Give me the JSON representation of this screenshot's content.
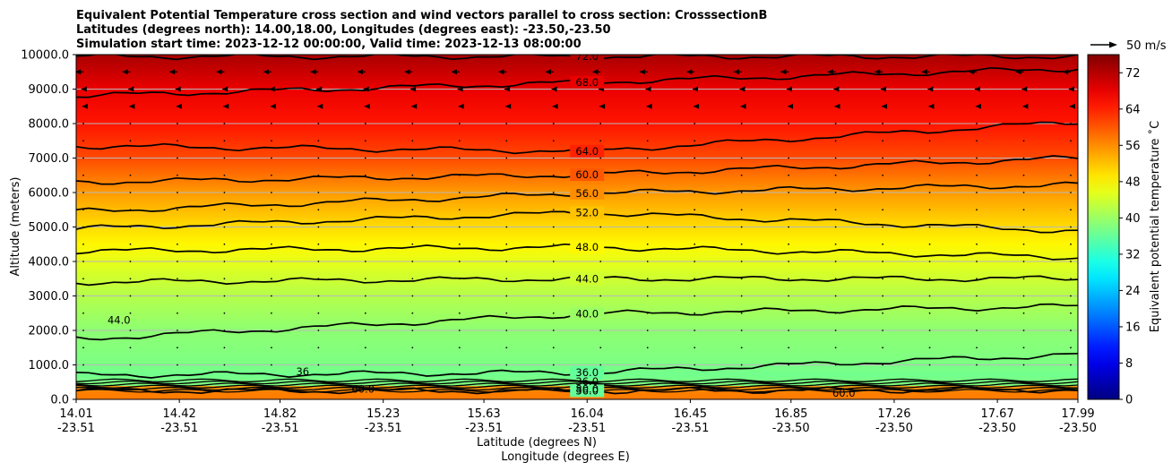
{
  "chart_data": {
    "type": "heatmap",
    "title_lines": [
      "Equivalent Potential Temperature cross section and wind vectors parallel to cross section: CrosssectionB",
      "Latitudes (degrees north): 14.00,18.00, Longitudes (degrees east): -23.50,-23.50",
      "Simulation start time: 2023-12-12 00:00:00, Valid time: 2023-12-13 08:00:00"
    ],
    "xlabel": "Latitude (degrees N)",
    "xlabel2": "Longitude (degrees E)",
    "ylabel": "Altitude (meters)",
    "ylim": [
      0,
      10000
    ],
    "xlim": [
      14.01,
      17.99
    ],
    "y_ticks": [
      "0.0",
      "1000.0",
      "2000.0",
      "3000.0",
      "4000.0",
      "5000.0",
      "6000.0",
      "7000.0",
      "8000.0",
      "9000.0",
      "10000.0"
    ],
    "x_ticks": [
      {
        "lat": "14.01",
        "lon": "-23.51"
      },
      {
        "lat": "14.42",
        "lon": "-23.51"
      },
      {
        "lat": "14.82",
        "lon": "-23.51"
      },
      {
        "lat": "15.23",
        "lon": "-23.51"
      },
      {
        "lat": "15.63",
        "lon": "-23.51"
      },
      {
        "lat": "16.04",
        "lon": "-23.51"
      },
      {
        "lat": "16.45",
        "lon": "-23.51"
      },
      {
        "lat": "16.85",
        "lon": "-23.50"
      },
      {
        "lat": "17.26",
        "lon": "-23.50"
      },
      {
        "lat": "17.67",
        "lon": "-23.50"
      },
      {
        "lat": "17.99",
        "lon": "-23.50"
      }
    ],
    "grid": "horizontal",
    "colorbar": {
      "label": "Equivalent potential temperature $^\\circ$C",
      "label_display": "Equivalent potential temperature ˚C",
      "min": 0,
      "max": 76,
      "ticks": [
        "0",
        "8",
        "16",
        "24",
        "32",
        "40",
        "48",
        "56",
        "64",
        "72"
      ],
      "colormap": "jet"
    },
    "wind_key": {
      "label": "50 m/s"
    },
    "contours": [
      {
        "level": 36,
        "label": "36.0",
        "alt_left": 250,
        "alt_mid": 250,
        "alt_right": 280
      },
      {
        "level": 36,
        "label": "36.0",
        "alt_left": 700,
        "alt_mid": 780,
        "alt_right": 1300
      },
      {
        "level": 40,
        "label": "40.0",
        "alt_left": 1750,
        "alt_mid": 2480,
        "alt_right": 2700
      },
      {
        "level": 44,
        "label": "44.0",
        "alt_left": 3400,
        "alt_mid": 3500,
        "alt_right": 3500
      },
      {
        "level": 48,
        "label": "48.0",
        "alt_left": 4300,
        "alt_mid": 4420,
        "alt_right": 4120
      },
      {
        "level": 52,
        "label": "52.0",
        "alt_left": 4950,
        "alt_mid": 5420,
        "alt_right": 4880
      },
      {
        "level": 56,
        "label": "56.0",
        "alt_left": 5450,
        "alt_mid": 5980,
        "alt_right": 6230
      },
      {
        "level": 60,
        "label": "60.0",
        "alt_left": 6300,
        "alt_mid": 6520,
        "alt_right": 7000
      },
      {
        "level": 64,
        "label": "64.0",
        "alt_left": 7350,
        "alt_mid": 7200,
        "alt_right": 8050
      },
      {
        "level": 68,
        "label": "68.0",
        "alt_left": 8800,
        "alt_mid": 9200,
        "alt_right": 9600
      },
      {
        "level": 72,
        "label": "72.0",
        "alt_left": 9950,
        "alt_mid": 9950,
        "alt_right": 9950
      }
    ],
    "extra_contour_labels": [
      {
        "label": "44.0",
        "lat": 14.18,
        "alt": 2200
      },
      {
        "label": "36",
        "lat": 14.91,
        "alt": 700
      },
      {
        "label": "36.0",
        "lat": 16.04,
        "alt": 420
      },
      {
        "label": "80.0",
        "lat": 16.04,
        "alt": 200
      },
      {
        "label": "60.0",
        "lat": 15.15,
        "alt": 200
      },
      {
        "label": "60.0",
        "lat": 17.06,
        "alt": 80
      }
    ],
    "theta_profile": [
      {
        "alt": 0,
        "t": 64
      },
      {
        "alt": 200,
        "t": 62
      },
      {
        "alt": 400,
        "t": 38
      },
      {
        "alt": 700,
        "t": 37
      },
      {
        "alt": 1200,
        "t": 38
      },
      {
        "alt": 2000,
        "t": 39
      },
      {
        "alt": 3000,
        "t": 42
      },
      {
        "alt": 3800,
        "t": 45
      },
      {
        "alt": 4500,
        "t": 48
      },
      {
        "alt": 5200,
        "t": 51
      },
      {
        "alt": 6000,
        "t": 55
      },
      {
        "alt": 7000,
        "t": 61
      },
      {
        "alt": 8000,
        "t": 65
      },
      {
        "alt": 9000,
        "t": 68
      },
      {
        "alt": 10000,
        "t": 73
      }
    ],
    "wind_rows": [
      {
        "alt": 9500,
        "u": -4
      },
      {
        "alt": 9000,
        "u": -1
      },
      {
        "alt": 8500,
        "u": -0.5
      },
      {
        "alt": 8000,
        "u": 0
      },
      {
        "alt": 7500,
        "u": 0
      },
      {
        "alt": 7000,
        "u": 0
      },
      {
        "alt": 6500,
        "u": 0
      },
      {
        "alt": 6000,
        "u": 0
      },
      {
        "alt": 5500,
        "u": 0
      },
      {
        "alt": 5000,
        "u": 0
      },
      {
        "alt": 4500,
        "u": 0
      },
      {
        "alt": 4000,
        "u": 0
      },
      {
        "alt": 3500,
        "u": 0
      },
      {
        "alt": 3000,
        "u": 0
      },
      {
        "alt": 2500,
        "u": 0
      },
      {
        "alt": 2000,
        "u": 0
      },
      {
        "alt": 1500,
        "u": 0
      },
      {
        "alt": 1000,
        "u": 0
      }
    ]
  }
}
